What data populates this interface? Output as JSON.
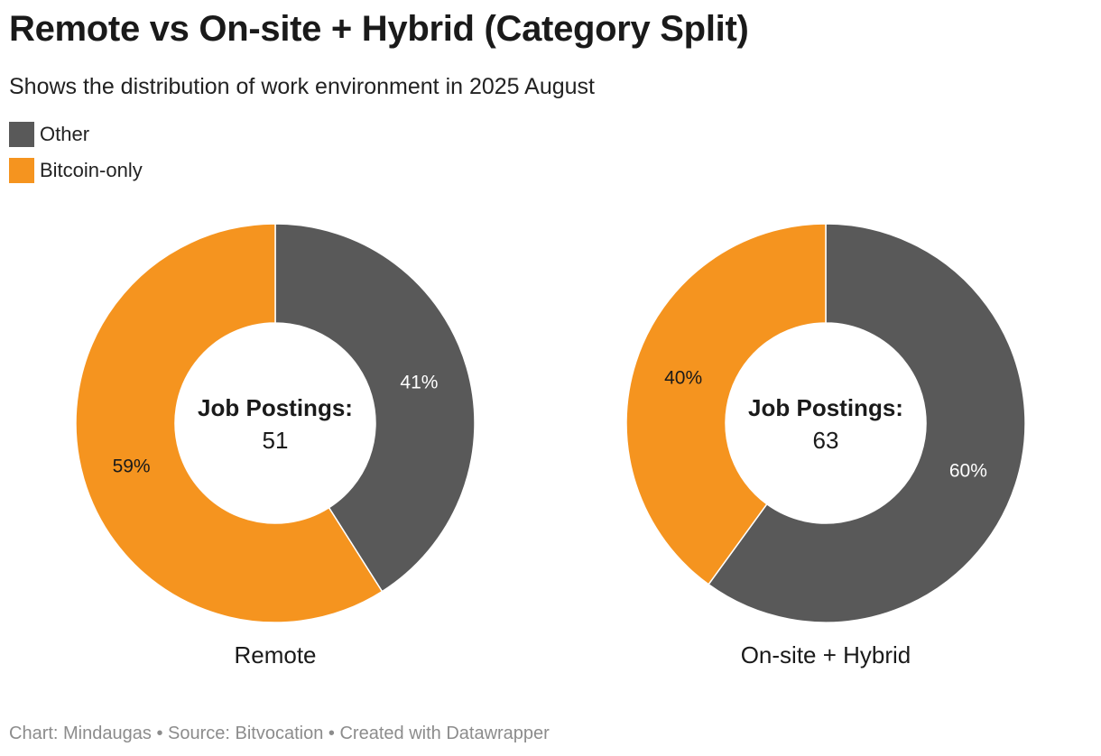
{
  "title": "Remote vs On-site + Hybrid (Category Split)",
  "subtitle": "Shows the distribution of work environment in 2025 August",
  "legend": [
    {
      "label": "Other",
      "color": "#595959"
    },
    {
      "label": "Bitcoin-only",
      "color": "#f5941f"
    }
  ],
  "footer": {
    "chart_by": "Chart: Mindaugas",
    "source": "Source: Bitvocation",
    "created": "Created with Datawrapper",
    "separator": "•"
  },
  "chart_data": [
    {
      "type": "pie",
      "name": "Remote",
      "center_label": "Job Postings:",
      "center_value": "51",
      "slices": [
        {
          "label": "Other",
          "value": 41,
          "display": "41%",
          "color": "#595959"
        },
        {
          "label": "Bitcoin-only",
          "value": 59,
          "display": "59%",
          "color": "#f5941f"
        }
      ]
    },
    {
      "type": "pie",
      "name": "On-site + Hybrid",
      "center_label": "Job Postings:",
      "center_value": "63",
      "slices": [
        {
          "label": "Other",
          "value": 60,
          "display": "60%",
          "color": "#595959"
        },
        {
          "label": "Bitcoin-only",
          "value": 40,
          "display": "40%",
          "color": "#f5941f"
        }
      ]
    }
  ]
}
